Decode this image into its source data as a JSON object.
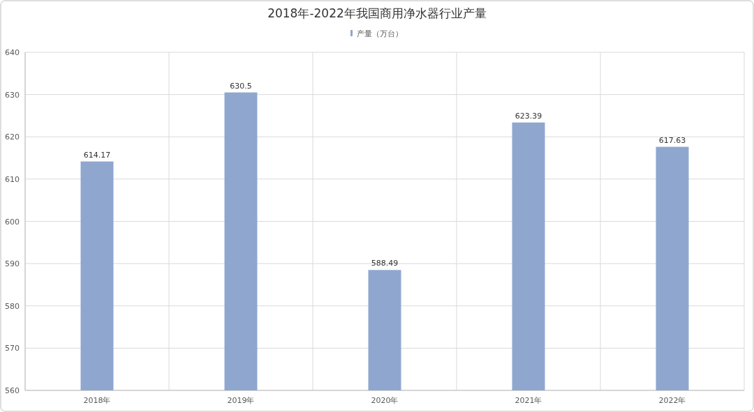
{
  "chart_data": {
    "type": "bar",
    "title": "2018年-2022年我国商用净水器行业产量",
    "categories": [
      "2018年",
      "2019年",
      "2020年",
      "2021年",
      "2022年"
    ],
    "series": [
      {
        "name": "产量（万台）",
        "color": "#8fa7cf",
        "values": [
          614.17,
          630.5,
          588.49,
          623.39,
          617.63
        ]
      }
    ],
    "ylim": [
      560,
      640
    ],
    "yticks": [
      560,
      570,
      580,
      590,
      600,
      610,
      620,
      630,
      640
    ],
    "grid": true,
    "legend": "top",
    "data_labels": true
  }
}
